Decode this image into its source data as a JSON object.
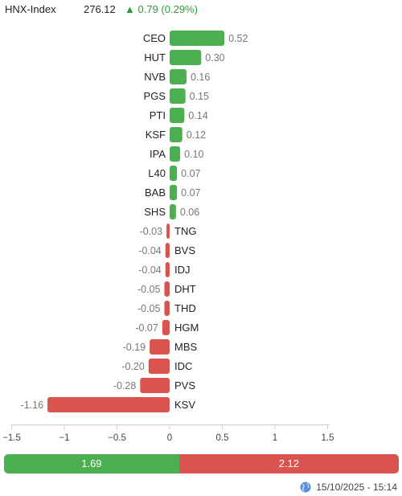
{
  "header": {
    "index_name": "HNX-Index",
    "price": "276.12",
    "change_arrow": "▲",
    "change_text": "0.79 (0.29%)",
    "up_color": "#2e9b3a"
  },
  "chart_data": {
    "type": "bar",
    "orientation": "horizontal",
    "categories": [
      "CEO",
      "HUT",
      "NVB",
      "PGS",
      "PTI",
      "KSF",
      "IPA",
      "L40",
      "BAB",
      "SHS",
      "TNG",
      "BVS",
      "IDJ",
      "DHT",
      "THD",
      "HGM",
      "MBS",
      "IDC",
      "PVS",
      "KSV"
    ],
    "values": [
      0.52,
      0.3,
      0.16,
      0.15,
      0.14,
      0.12,
      0.1,
      0.07,
      0.07,
      0.06,
      -0.03,
      -0.04,
      -0.04,
      -0.05,
      -0.05,
      -0.07,
      -0.19,
      -0.2,
      -0.28,
      -1.16
    ],
    "value_labels": [
      "0.52",
      "0.30",
      "0.16",
      "0.15",
      "0.14",
      "0.12",
      "0.10",
      "0.07",
      "0.07",
      "0.06",
      "-0.03",
      "-0.04",
      "-0.04",
      "-0.05",
      "-0.05",
      "-0.07",
      "-0.19",
      "-0.20",
      "-0.28",
      "-1.16"
    ],
    "xlim": [
      -1.5,
      1.5
    ],
    "xticks": [
      -1.5,
      -1,
      -0.5,
      0,
      0.5,
      1,
      1.5
    ],
    "xtick_labels": [
      "−1.5",
      "−1",
      "−0.5",
      "0",
      "0.5",
      "1",
      "1.5"
    ],
    "positive_color": "#4caf50",
    "negative_color": "#d9534f",
    "grid": false,
    "legend": "none"
  },
  "summary": {
    "up_value": 1.69,
    "down_value": 2.12,
    "up_label": "1.69",
    "down_label": "2.12",
    "up_color": "#4caf50",
    "down_color": "#d9534f"
  },
  "footer": {
    "timestamp": "15/10/2025 - 15:14",
    "icon": "globe-icon"
  }
}
